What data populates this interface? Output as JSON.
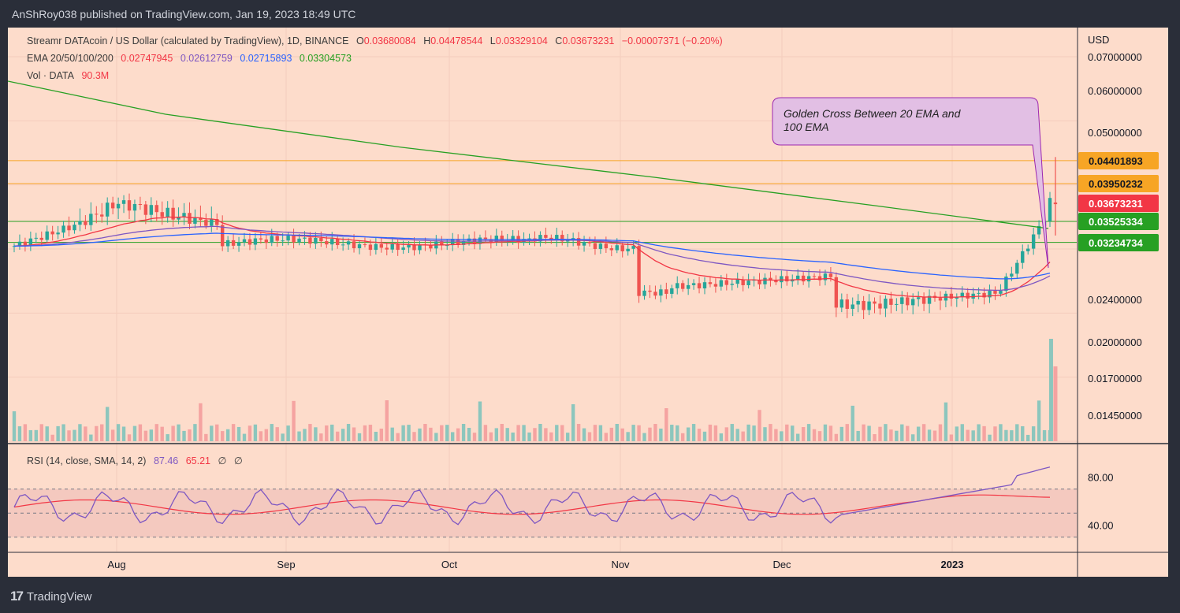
{
  "header": {
    "publisher_line": "AnShRoy038 published on TradingView.com, Jan 19, 2023 18:49 UTC"
  },
  "footer": {
    "brand": "TradingView",
    "logo_glyph": "17"
  },
  "legend": {
    "title": "Streamr DATAcoin / US Dollar (calculated by TradingView), 1D, BINANCE",
    "ohlc": {
      "o_label": "O",
      "o": "0.03680084",
      "h_label": "H",
      "h": "0.04478544",
      "l_label": "L",
      "l": "0.03329104",
      "c_label": "C",
      "c": "0.03673231",
      "change": "−0.00007371 (−0.20%)"
    },
    "ema_label": "EMA 20/50/100/200",
    "ema_values": [
      "0.02747945",
      "0.02612759",
      "0.02715893",
      "0.03304573"
    ],
    "vol_label": "Vol · DATA",
    "vol_value": "90.3M",
    "rsi_label": "RSI (14, close, SMA, 14, 2)",
    "rsi_value": "87.46",
    "rsi_sma_value": "65.21",
    "rsi_extra": [
      "∅",
      "∅"
    ]
  },
  "annotation": {
    "text_line1": "Golden Cross Between 20 EMA and",
    "text_line2": "100 EMA"
  },
  "colors": {
    "background": "#fddccb",
    "up": "#26a69a",
    "down": "#ef5350",
    "ema20": "#f23645",
    "ema50": "#7e57c2",
    "ema100": "#2962ff",
    "ema200": "#27a023",
    "rsi": "#7e57c2",
    "rsi_sma": "#f23645",
    "annotation_fill": "#e2bfe4",
    "annotation_border": "#9c27b0"
  },
  "chart_data": {
    "type": "candlestick",
    "currency": "USD",
    "price_axis_labels": [
      "0.07000000",
      "0.06000000",
      "0.05000000",
      "0.02400000",
      "0.02000000",
      "0.01700000",
      "0.01450000"
    ],
    "price_badges": [
      {
        "value": "0.04401893",
        "color": "#f7a525",
        "text_color": "#131722"
      },
      {
        "value": "0.03950232",
        "color": "#f7a525",
        "text_color": "#131722"
      },
      {
        "value": "0.03673231",
        "color": "#f23645",
        "text_color": "#ffffff"
      },
      {
        "value": "0.03525334",
        "color": "#27a023",
        "text_color": "#ffffff"
      },
      {
        "value": "0.03234734",
        "color": "#27a023",
        "text_color": "#ffffff"
      }
    ],
    "x_labels": [
      "Aug",
      "Sep",
      "Oct",
      "Nov",
      "Dec",
      "2023"
    ],
    "rsi_axis_labels": [
      "80.00",
      "40.00"
    ],
    "rsi_bands": [
      70,
      50,
      30
    ],
    "horizontal_lines": [
      {
        "value": 0.04401893,
        "color": "#f7a525"
      },
      {
        "value": 0.03950232,
        "color": "#f7a525"
      },
      {
        "value": 0.03525334,
        "color": "#27a023"
      },
      {
        "value": 0.03234734,
        "color": "#27a023"
      }
    ],
    "candles_y_pixel_scale_note": "",
    "key_prices": {
      "open": 0.03680084,
      "high": 0.04478544,
      "low": 0.03329104,
      "close": 0.03673231
    }
  }
}
